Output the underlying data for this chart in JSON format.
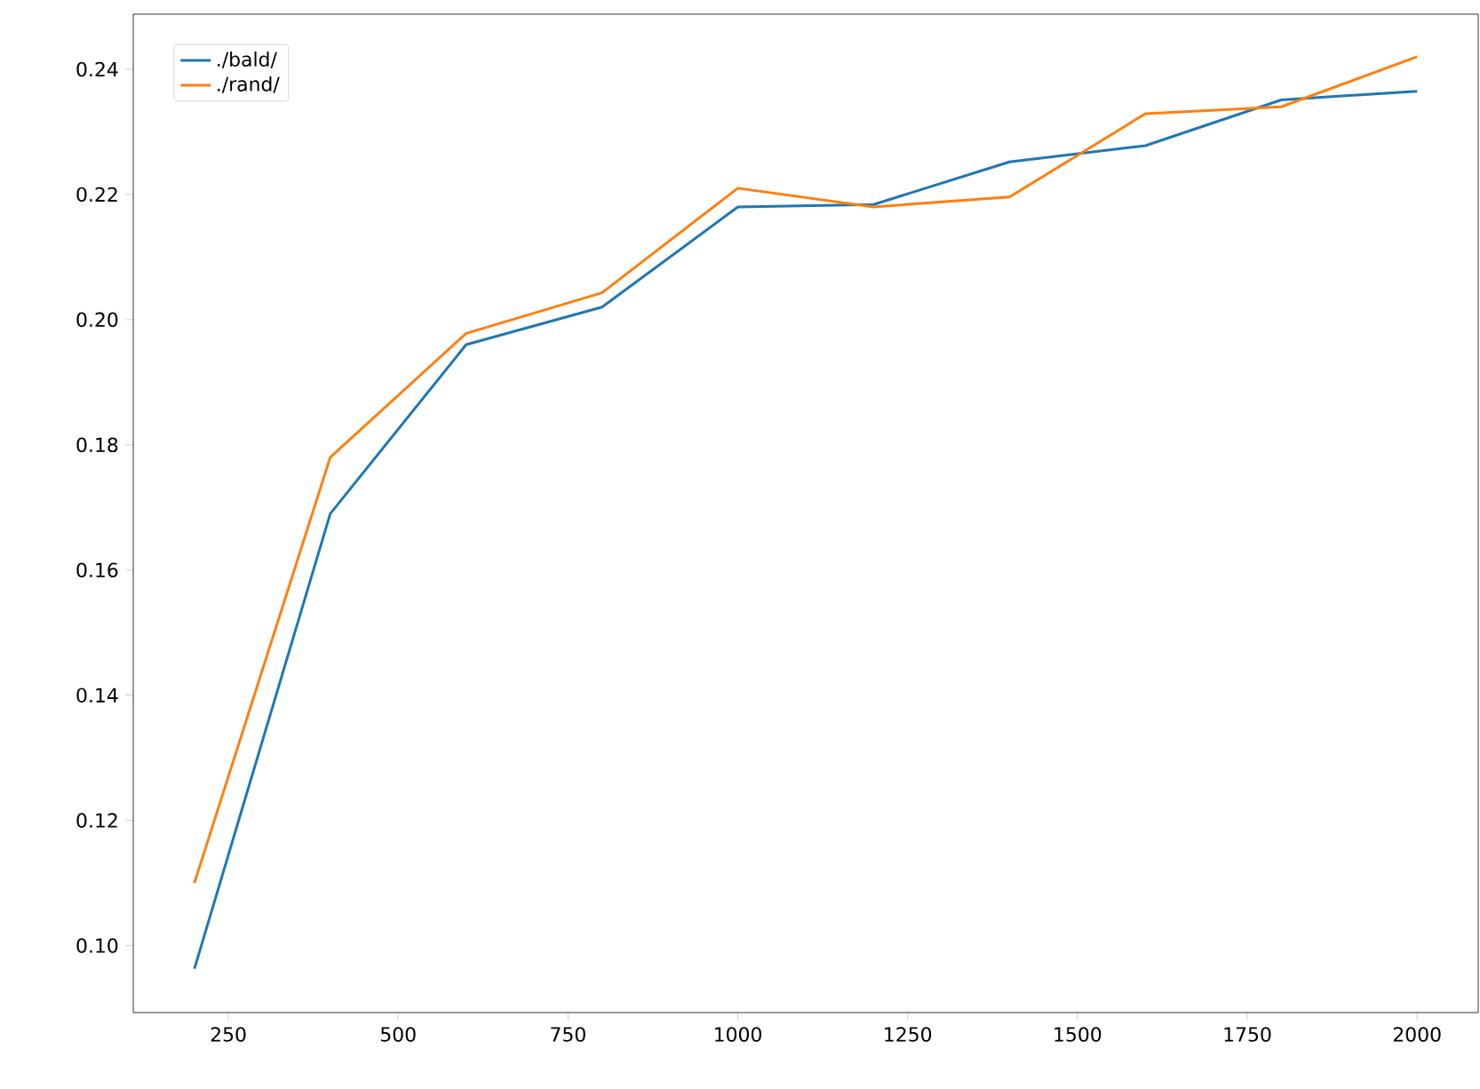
{
  "chart_data": {
    "type": "line",
    "x": [
      200,
      400,
      600,
      800,
      1000,
      1200,
      1400,
      1600,
      1800,
      2000
    ],
    "series": [
      {
        "name": "./bald/",
        "color": "#1f77b4",
        "values": [
          0.0963,
          0.169,
          0.196,
          0.202,
          0.218,
          0.2184,
          0.2252,
          0.2278,
          0.2351,
          0.2365
        ]
      },
      {
        "name": "./rand/",
        "color": "#ff7f0e",
        "values": [
          0.11,
          0.178,
          0.1978,
          0.2043,
          0.221,
          0.218,
          0.2196,
          0.2329,
          0.234,
          0.242
        ]
      }
    ],
    "xlim": [
      110,
      2090
    ],
    "ylim": [
      0.0893,
      0.2488
    ],
    "xticks": [
      250,
      500,
      750,
      1000,
      1250,
      1500,
      1750,
      2000
    ],
    "yticks": [
      {
        "value": 0.1,
        "label": "0.10"
      },
      {
        "value": 0.12,
        "label": "0.12"
      },
      {
        "value": 0.14,
        "label": "0.14"
      },
      {
        "value": 0.16,
        "label": "0.16"
      },
      {
        "value": 0.18,
        "label": "0.18"
      },
      {
        "value": 0.2,
        "label": "0.20"
      },
      {
        "value": 0.22,
        "label": "0.22"
      },
      {
        "value": 0.24,
        "label": "0.24"
      }
    ],
    "legend": "top left",
    "grid": false,
    "marker": "none",
    "line_style": "solid"
  }
}
